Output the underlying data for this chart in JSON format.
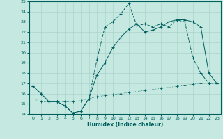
{
  "xlabel": "Humidex (Indice chaleur)",
  "bg_color": "#c5e8e0",
  "line_color": "#006060",
  "grid_color": "#a8ccc8",
  "xlim": [
    -0.5,
    23.5
  ],
  "ylim": [
    14,
    25
  ],
  "xticks": [
    0,
    1,
    2,
    3,
    4,
    5,
    6,
    7,
    8,
    9,
    10,
    11,
    12,
    13,
    14,
    15,
    16,
    17,
    18,
    19,
    20,
    21,
    22,
    23
  ],
  "yticks": [
    14,
    15,
    16,
    17,
    18,
    19,
    20,
    21,
    22,
    23,
    24,
    25
  ],
  "line1_x": [
    0,
    1,
    2,
    3,
    4,
    5,
    6,
    7,
    8,
    9,
    10,
    11,
    12,
    13,
    14,
    15,
    16,
    17,
    18,
    19,
    20,
    21,
    22,
    23
  ],
  "line1_y": [
    16.7,
    16.0,
    15.2,
    15.2,
    14.8,
    14.1,
    14.3,
    15.5,
    19.3,
    22.5,
    23.0,
    23.8,
    24.8,
    22.6,
    22.8,
    22.5,
    22.8,
    22.5,
    23.2,
    23.0,
    19.5,
    18.0,
    17.0,
    17.0
  ],
  "line2_x": [
    0,
    1,
    2,
    3,
    4,
    5,
    6,
    7,
    8,
    9,
    10,
    11,
    12,
    13,
    14,
    15,
    16,
    17,
    18,
    19,
    20,
    21,
    22,
    23
  ],
  "line2_y": [
    16.7,
    16.0,
    15.2,
    15.2,
    14.8,
    14.1,
    14.3,
    15.5,
    17.8,
    19.0,
    20.5,
    21.5,
    22.3,
    22.8,
    22.0,
    22.2,
    22.5,
    23.0,
    23.2,
    23.2,
    23.0,
    22.5,
    18.0,
    17.0
  ],
  "line3_x": [
    0,
    1,
    2,
    3,
    4,
    5,
    6,
    7,
    8,
    9,
    10,
    11,
    12,
    13,
    14,
    15,
    16,
    17,
    18,
    19,
    20,
    21,
    22,
    23
  ],
  "line3_y": [
    15.5,
    15.2,
    15.2,
    15.2,
    15.2,
    15.2,
    15.3,
    15.5,
    15.7,
    15.8,
    15.9,
    16.0,
    16.1,
    16.2,
    16.3,
    16.4,
    16.5,
    16.6,
    16.7,
    16.8,
    16.9,
    17.0,
    17.0,
    17.0
  ]
}
